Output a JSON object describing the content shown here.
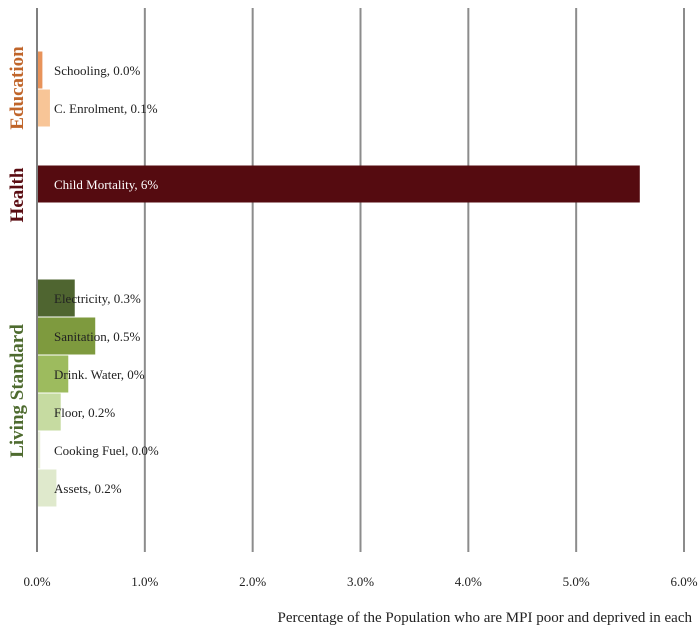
{
  "chart_data": {
    "type": "bar",
    "orientation": "horizontal",
    "title": "",
    "xlabel": "Percentage of the Population who are MPI poor and deprived in each",
    "ylabel": "",
    "xlim": [
      0,
      0.06
    ],
    "x_ticks": [
      "0.0%",
      "1.0%",
      "2.0%",
      "3.0%",
      "4.0%",
      "5.0%",
      "6.0%"
    ],
    "grid": "vertical",
    "legend": "none",
    "groups": [
      {
        "name": "Education",
        "color": "#c0652a",
        "label": "Education"
      },
      {
        "name": "Health",
        "color": "#5a0c12",
        "label": "Health"
      },
      {
        "name": "Living Standard",
        "color": "#4e6b2f",
        "label": "Living Standard"
      }
    ],
    "bars": [
      {
        "category": "Schooling",
        "value": 0.0005,
        "label": "Schooling, 0.0%",
        "group": "Education",
        "color": "#e8935a",
        "label_color": "#222222"
      },
      {
        "category": "C. Enrolment",
        "value": 0.0012,
        "label": "C. Enrolment, 0.1%",
        "group": "Education",
        "color": "#f8c597",
        "label_color": "#222222"
      },
      {
        "category": "Child Mortality",
        "value": 0.0559,
        "label": "Child Mortality, 6%",
        "group": "Health",
        "color": "#550b10",
        "label_color": "#ffffff"
      },
      {
        "category": "Electricity",
        "value": 0.0035,
        "label": "Electricity, 0.3%",
        "group": "Living Standard",
        "color": "#4f6530",
        "label_color": "#222222"
      },
      {
        "category": "Sanitation",
        "value": 0.0054,
        "label": "Sanitation, 0.5%",
        "group": "Living Standard",
        "color": "#7e9a3e",
        "label_color": "#222222"
      },
      {
        "category": "Drink. Water",
        "value": 0.0029,
        "label": "Drink. Water, 0%",
        "group": "Living Standard",
        "color": "#9dbb5e",
        "label_color": "#222222"
      },
      {
        "category": "Floor",
        "value": 0.0022,
        "label": "Floor, 0.2%",
        "group": "Living Standard",
        "color": "#c6dba1",
        "label_color": "#222222"
      },
      {
        "category": "Cooking Fuel",
        "value": 0.0003,
        "label": "Cooking Fuel, 0.0%",
        "group": "Living Standard",
        "color": "#e8efd9",
        "label_color": "#222222"
      },
      {
        "category": "Assets",
        "value": 0.0018,
        "label": "Assets, 0.2%",
        "group": "Living Standard",
        "color": "#dfe9cc",
        "label_color": "#222222"
      }
    ]
  }
}
